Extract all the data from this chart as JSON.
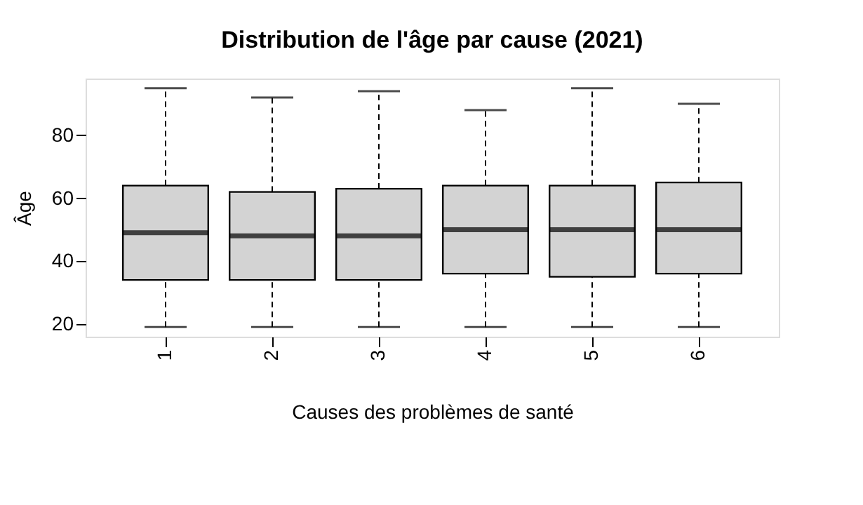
{
  "chart_data": {
    "type": "box",
    "title": "Distribution de l'âge par cause (2021)",
    "xlabel": "Causes des problèmes de santé",
    "ylabel": "Âge",
    "categories": [
      "1",
      "2",
      "3",
      "4",
      "5",
      "6"
    ],
    "boxes": [
      {
        "low": 19,
        "q1": 34,
        "median": 49,
        "q3": 64,
        "high": 95
      },
      {
        "low": 19,
        "q1": 34,
        "median": 48,
        "q3": 62,
        "high": 92
      },
      {
        "low": 19,
        "q1": 34,
        "median": 48,
        "q3": 63,
        "high": 94
      },
      {
        "low": 19,
        "q1": 36,
        "median": 50,
        "q3": 64,
        "high": 88
      },
      {
        "low": 19,
        "q1": 35,
        "median": 50,
        "q3": 64,
        "high": 95
      },
      {
        "low": 19,
        "q1": 36,
        "median": 50,
        "q3": 65,
        "high": 90
      }
    ],
    "color": "#d3d3d3",
    "ylim": [
      15.96,
      98.04
    ],
    "yticks": [
      20,
      40,
      60,
      80
    ],
    "grid": false
  }
}
